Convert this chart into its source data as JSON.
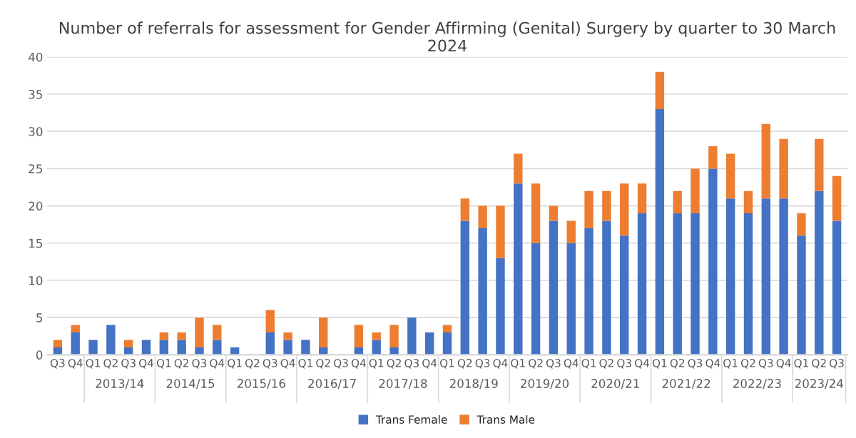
{
  "chart_data": {
    "type": "bar",
    "stacked": true,
    "title": "Number of referrals for assessment for Gender Affirming (Genital) Surgery by quarter to 30 March 2024",
    "categories": [
      "Q3",
      "Q4",
      "Q1",
      "Q2",
      "Q3",
      "Q4",
      "Q1",
      "Q2",
      "Q3",
      "Q4",
      "Q1",
      "Q2",
      "Q3",
      "Q4",
      "Q1",
      "Q2",
      "Q3",
      "Q4",
      "Q1",
      "Q2",
      "Q3",
      "Q4",
      "Q1",
      "Q2",
      "Q3",
      "Q4",
      "Q1",
      "Q2",
      "Q3",
      "Q4",
      "Q1",
      "Q2",
      "Q3",
      "Q4",
      "Q1",
      "Q2",
      "Q3",
      "Q4",
      "Q1",
      "Q2",
      "Q3",
      "Q4",
      "Q1",
      "Q2",
      "Q3"
    ],
    "series": [
      {
        "name": "Trans Female",
        "color": "#4472c4",
        "values": [
          1,
          3,
          2,
          4,
          1,
          2,
          2,
          2,
          1,
          2,
          1,
          0,
          3,
          2,
          2,
          1,
          0,
          1,
          2,
          1,
          5,
          3,
          3,
          18,
          17,
          13,
          23,
          15,
          18,
          15,
          17,
          18,
          16,
          19,
          33,
          19,
          19,
          25,
          21,
          19,
          21,
          21,
          16,
          22,
          18
        ]
      },
      {
        "name": "Trans Male",
        "color": "#ed7d31",
        "values": [
          1,
          1,
          0,
          0,
          1,
          0,
          1,
          1,
          4,
          2,
          0,
          0,
          3,
          1,
          0,
          4,
          0,
          3,
          1,
          3,
          0,
          0,
          1,
          3,
          3,
          7,
          4,
          8,
          2,
          3,
          5,
          4,
          7,
          4,
          5,
          3,
          6,
          3,
          6,
          3,
          10,
          8,
          3,
          7,
          6
        ]
      }
    ],
    "annotations": [
      "2013/14",
      "2014/15",
      "2015/16",
      "2016/17",
      "2017/18",
      "2018/19",
      "2019/20",
      "2020/21",
      "2021/22",
      "2022/23",
      "2023/24"
    ],
    "ylim": [
      0,
      40
    ],
    "yticks": [
      0,
      5,
      10,
      15,
      20,
      25,
      30,
      35,
      40
    ],
    "grid": "y",
    "legend": "bottom"
  }
}
